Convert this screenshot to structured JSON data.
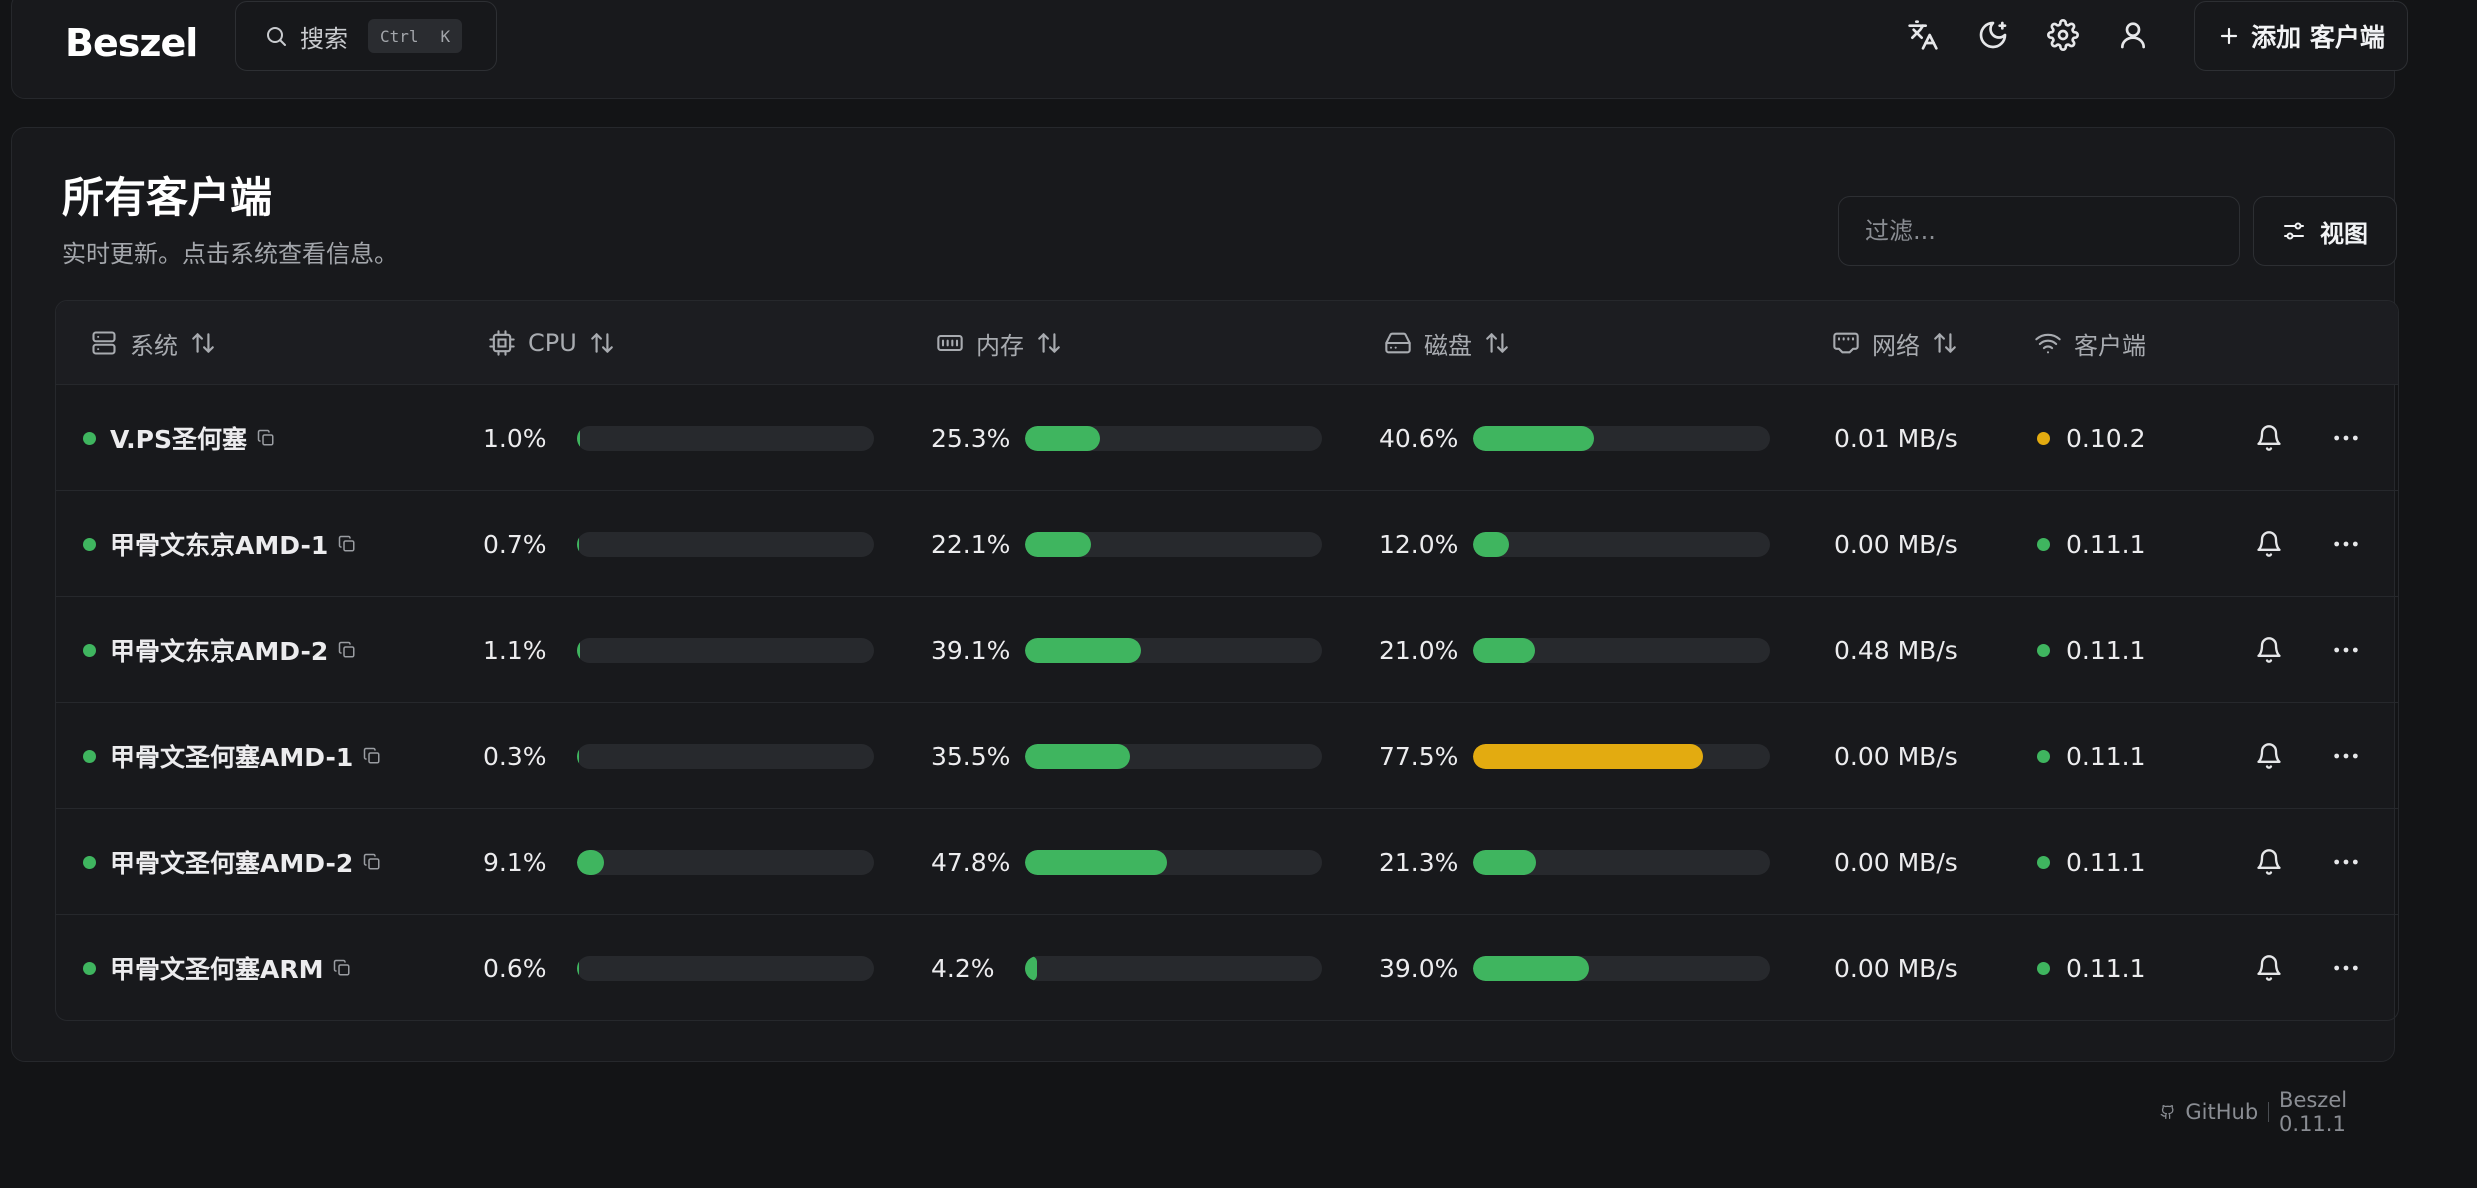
{
  "app": {
    "logo": "Beszel"
  },
  "header": {
    "search_label": "搜索",
    "kbd_ctrl": "Ctrl",
    "kbd_k": "K",
    "add_client_label": "添加 客户端"
  },
  "page": {
    "title": "所有客户端",
    "subtitle": "实时更新。点击系统查看信息。",
    "filter_placeholder": "过滤...",
    "view_label": "视图"
  },
  "columns": {
    "system": "系统",
    "cpu": "CPU",
    "memory": "内存",
    "disk": "磁盘",
    "network": "网络",
    "agent": "客户端"
  },
  "colors": {
    "status_up": "#3fb55f",
    "status_warn": "#e3ab10",
    "bar_green": "#3fb55f",
    "bar_yellow": "#e3ab10"
  },
  "rows": [
    {
      "name": "V.PS圣何塞",
      "status": "up",
      "cpu": "1.0%",
      "cpu_value": 1.0,
      "mem": "25.3%",
      "mem_value": 25.3,
      "disk": "40.6%",
      "disk_value": 40.6,
      "net": "0.01 MB/s",
      "version": "0.10.2",
      "version_status": "warn"
    },
    {
      "name": "甲骨文东京AMD-1",
      "status": "up",
      "cpu": "0.7%",
      "cpu_value": 0.7,
      "mem": "22.1%",
      "mem_value": 22.1,
      "disk": "12.0%",
      "disk_value": 12.0,
      "net": "0.00 MB/s",
      "version": "0.11.1",
      "version_status": "up"
    },
    {
      "name": "甲骨文东京AMD-2",
      "status": "up",
      "cpu": "1.1%",
      "cpu_value": 1.1,
      "mem": "39.1%",
      "mem_value": 39.1,
      "disk": "21.0%",
      "disk_value": 21.0,
      "net": "0.48 MB/s",
      "version": "0.11.1",
      "version_status": "up"
    },
    {
      "name": "甲骨文圣何塞AMD-1",
      "status": "up",
      "cpu": "0.3%",
      "cpu_value": 0.3,
      "mem": "35.5%",
      "mem_value": 35.5,
      "disk": "77.5%",
      "disk_value": 77.5,
      "net": "0.00 MB/s",
      "version": "0.11.1",
      "version_status": "up"
    },
    {
      "name": "甲骨文圣何塞AMD-2",
      "status": "up",
      "cpu": "9.1%",
      "cpu_value": 9.1,
      "mem": "47.8%",
      "mem_value": 47.8,
      "disk": "21.3%",
      "disk_value": 21.3,
      "net": "0.00 MB/s",
      "version": "0.11.1",
      "version_status": "up"
    },
    {
      "name": "甲骨文圣何塞ARM",
      "status": "up",
      "cpu": "0.6%",
      "cpu_value": 0.6,
      "mem": "4.2%",
      "mem_value": 4.2,
      "disk": "39.0%",
      "disk_value": 39.0,
      "net": "0.00 MB/s",
      "version": "0.11.1",
      "version_status": "up"
    }
  ],
  "footer": {
    "github": "GitHub",
    "version": "Beszel 0.11.1"
  }
}
